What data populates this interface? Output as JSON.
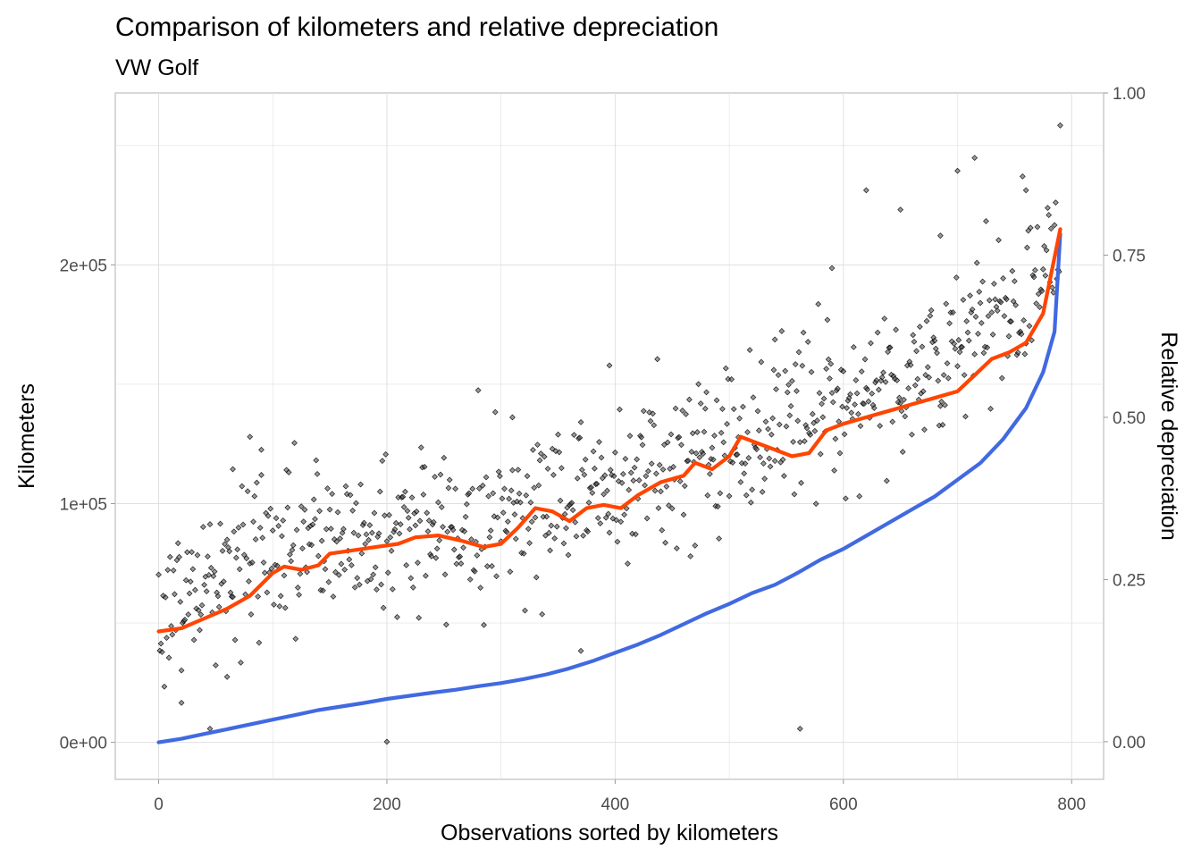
{
  "chart_data": {
    "type": "scatter",
    "title": "Comparison of kilometers and relative depreciation",
    "subtitle": "VW Golf",
    "xlabel": "Observations sorted by kilometers",
    "ylabel": "Kilometers",
    "y2label": "Relative depreciation",
    "xlim": [
      -38,
      828
    ],
    "ylim": [
      -15500,
      272000
    ],
    "y2lim": [
      -0.058,
      1.0
    ],
    "x_ticks": [
      0,
      200,
      400,
      600,
      800
    ],
    "x_tick_labels": [
      "0",
      "200",
      "400",
      "600",
      "800"
    ],
    "y_ticks": [
      0,
      100000,
      200000
    ],
    "y_tick_labels": [
      "0e+00",
      "1e+05",
      "2e+05"
    ],
    "y2_ticks": [
      0.0,
      0.25,
      0.5,
      0.75,
      1.0
    ],
    "y2_tick_labels": [
      "0.00",
      "0.25",
      "0.50",
      "0.75",
      "1.00"
    ],
    "grid": true,
    "n_points": 790,
    "series": [
      {
        "type": "scatter",
        "axis": "right",
        "color": "#000000",
        "marker": "diamond",
        "trend": [
          [
            0,
            0.2
          ],
          [
            50,
            0.25
          ],
          [
            100,
            0.3
          ],
          [
            150,
            0.31
          ],
          [
            200,
            0.32
          ],
          [
            250,
            0.33
          ],
          [
            300,
            0.35
          ],
          [
            350,
            0.38
          ],
          [
            400,
            0.4
          ],
          [
            450,
            0.43
          ],
          [
            500,
            0.46
          ],
          [
            550,
            0.5
          ],
          [
            600,
            0.53
          ],
          [
            650,
            0.56
          ],
          [
            700,
            0.6
          ],
          [
            750,
            0.68
          ],
          [
            790,
            0.78
          ]
        ],
        "outliers": [
          [
            20,
            0.06
          ],
          [
            45,
            0.02
          ],
          [
            60,
            0.1
          ],
          [
            65,
            0.42
          ],
          [
            80,
            0.47
          ],
          [
            90,
            0.45
          ],
          [
            200,
            0.0
          ],
          [
            310,
            0.5
          ],
          [
            370,
            0.14
          ],
          [
            395,
            0.58
          ],
          [
            540,
            0.62
          ],
          [
            562,
            0.02
          ],
          [
            590,
            0.73
          ],
          [
            620,
            0.85
          ],
          [
            650,
            0.82
          ],
          [
            685,
            0.78
          ],
          [
            700,
            0.88
          ],
          [
            715,
            0.9
          ],
          [
            760,
            0.85
          ],
          [
            790,
            0.95
          ]
        ]
      },
      {
        "type": "line",
        "axis": "left",
        "color": "#4169e1",
        "points": [
          [
            0,
            0
          ],
          [
            20,
            1500
          ],
          [
            40,
            3500
          ],
          [
            60,
            5500
          ],
          [
            80,
            7500
          ],
          [
            100,
            9500
          ],
          [
            120,
            11500
          ],
          [
            140,
            13500
          ],
          [
            160,
            15000
          ],
          [
            180,
            16500
          ],
          [
            200,
            18200
          ],
          [
            220,
            19500
          ],
          [
            240,
            20800
          ],
          [
            260,
            22000
          ],
          [
            280,
            23500
          ],
          [
            300,
            24800
          ],
          [
            320,
            26500
          ],
          [
            340,
            28500
          ],
          [
            360,
            31000
          ],
          [
            380,
            34000
          ],
          [
            400,
            37500
          ],
          [
            420,
            41000
          ],
          [
            440,
            45000
          ],
          [
            460,
            49500
          ],
          [
            480,
            54000
          ],
          [
            500,
            58000
          ],
          [
            520,
            62500
          ],
          [
            540,
            66000
          ],
          [
            560,
            71000
          ],
          [
            580,
            76500
          ],
          [
            600,
            81000
          ],
          [
            620,
            86500
          ],
          [
            640,
            92000
          ],
          [
            660,
            97500
          ],
          [
            680,
            103000
          ],
          [
            700,
            110000
          ],
          [
            720,
            117000
          ],
          [
            740,
            127000
          ],
          [
            760,
            140000
          ],
          [
            775,
            155000
          ],
          [
            785,
            172000
          ],
          [
            790,
            213000
          ]
        ]
      },
      {
        "type": "line",
        "axis": "right",
        "color": "#ff4500",
        "points": [
          [
            0,
            0.17
          ],
          [
            20,
            0.175
          ],
          [
            40,
            0.19
          ],
          [
            60,
            0.205
          ],
          [
            80,
            0.225
          ],
          [
            100,
            0.26
          ],
          [
            110,
            0.27
          ],
          [
            125,
            0.265
          ],
          [
            140,
            0.272
          ],
          [
            150,
            0.29
          ],
          [
            170,
            0.295
          ],
          [
            190,
            0.3
          ],
          [
            210,
            0.305
          ],
          [
            225,
            0.315
          ],
          [
            245,
            0.318
          ],
          [
            265,
            0.31
          ],
          [
            285,
            0.3
          ],
          [
            300,
            0.305
          ],
          [
            315,
            0.33
          ],
          [
            330,
            0.36
          ],
          [
            345,
            0.355
          ],
          [
            360,
            0.34
          ],
          [
            375,
            0.36
          ],
          [
            390,
            0.365
          ],
          [
            405,
            0.36
          ],
          [
            420,
            0.38
          ],
          [
            440,
            0.4
          ],
          [
            460,
            0.41
          ],
          [
            470,
            0.43
          ],
          [
            485,
            0.42
          ],
          [
            500,
            0.44
          ],
          [
            510,
            0.47
          ],
          [
            525,
            0.46
          ],
          [
            540,
            0.45
          ],
          [
            555,
            0.44
          ],
          [
            570,
            0.445
          ],
          [
            585,
            0.48
          ],
          [
            600,
            0.49
          ],
          [
            620,
            0.5
          ],
          [
            640,
            0.51
          ],
          [
            660,
            0.52
          ],
          [
            680,
            0.53
          ],
          [
            700,
            0.54
          ],
          [
            715,
            0.565
          ],
          [
            730,
            0.59
          ],
          [
            745,
            0.6
          ],
          [
            760,
            0.615
          ],
          [
            775,
            0.66
          ],
          [
            790,
            0.79
          ]
        ]
      }
    ]
  }
}
